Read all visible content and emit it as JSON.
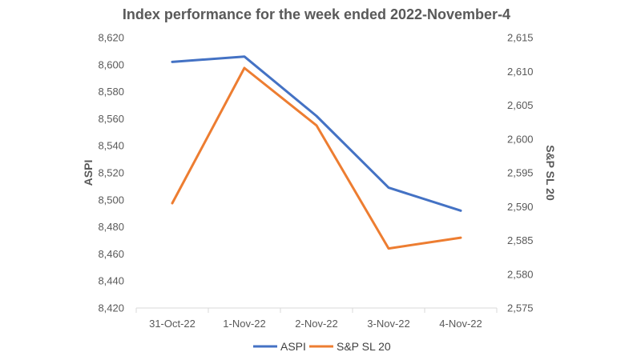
{
  "chart_data": {
    "type": "line",
    "title": "Index performance for the week ended 2022-November-4",
    "categories": [
      "31-Oct-22",
      "1-Nov-22",
      "2-Nov-22",
      "3-Nov-22",
      "4-Nov-22"
    ],
    "series": [
      {
        "name": "ASPI",
        "axis": "left",
        "color": "#4472C4",
        "values": [
          8602,
          8606,
          8562,
          8509,
          8492
        ]
      },
      {
        "name": "S&P SL 20",
        "axis": "right",
        "color": "#ED7D31",
        "values": [
          2590.5,
          2610.5,
          2602.0,
          2583.8,
          2585.4
        ]
      }
    ],
    "y_left": {
      "label": "ASPI",
      "min": 8420,
      "max": 8620,
      "ticks": [
        "8,420",
        "8,440",
        "8,460",
        "8,480",
        "8,500",
        "8,520",
        "8,540",
        "8,560",
        "8,580",
        "8,600",
        "8,620"
      ]
    },
    "y_right": {
      "label": "S&P SL 20",
      "min": 2575,
      "max": 2615,
      "ticks": [
        "2,575",
        "2,580",
        "2,585",
        "2,590",
        "2,595",
        "2,600",
        "2,605",
        "2,610",
        "2,615"
      ]
    },
    "grid": false,
    "legend_position": "bottom"
  }
}
